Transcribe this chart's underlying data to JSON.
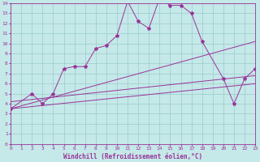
{
  "xlabel": "Windchill (Refroidissement éolien,°C)",
  "xlim": [
    0,
    23
  ],
  "ylim": [
    0,
    14
  ],
  "xticks": [
    0,
    1,
    2,
    3,
    4,
    5,
    6,
    7,
    8,
    9,
    10,
    11,
    12,
    13,
    14,
    15,
    16,
    17,
    18,
    19,
    20,
    21,
    22,
    23
  ],
  "yticks": [
    0,
    1,
    2,
    3,
    4,
    5,
    6,
    7,
    8,
    9,
    10,
    11,
    12,
    13,
    14
  ],
  "background_color": "#c5e8e8",
  "grid_color": "#99cccc",
  "line_color": "#993399",
  "lines": [
    {
      "x": [
        0,
        2,
        3,
        4,
        5,
        6,
        7,
        8,
        9,
        10,
        11,
        12,
        13,
        14,
        15,
        16,
        17,
        18,
        20,
        21,
        22,
        23
      ],
      "y": [
        3.5,
        5.0,
        4.0,
        5.0,
        7.5,
        7.7,
        7.7,
        9.5,
        9.8,
        10.8,
        14.2,
        12.2,
        11.5,
        14.5,
        13.8,
        13.8,
        13.0,
        10.2,
        6.5,
        4.0,
        6.5,
        7.5
      ],
      "has_marker": true
    },
    {
      "x": [
        0,
        23
      ],
      "y": [
        3.5,
        10.2
      ],
      "has_marker": false
    },
    {
      "x": [
        0,
        23
      ],
      "y": [
        4.2,
        6.8
      ],
      "has_marker": false
    },
    {
      "x": [
        0,
        23
      ],
      "y": [
        3.5,
        6.0
      ],
      "has_marker": false
    }
  ],
  "tick_fontsize": 4.5,
  "xlabel_fontsize": 5.5,
  "linewidth": 0.7,
  "markersize": 3.0
}
